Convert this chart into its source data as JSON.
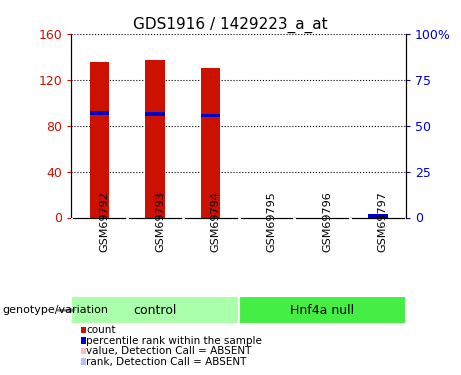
{
  "title": "GDS1916 / 1429223_a_at",
  "samples": [
    "GSM69792",
    "GSM69793",
    "GSM69794",
    "GSM69795",
    "GSM69796",
    "GSM69797"
  ],
  "bar_heights": [
    135,
    137,
    130,
    0,
    0,
    0
  ],
  "blue_marks_left_scale": [
    91,
    90,
    89,
    0,
    0,
    1.5
  ],
  "ylim_left": [
    0,
    160
  ],
  "ylim_right": [
    0,
    100
  ],
  "yticks_left": [
    0,
    40,
    80,
    120,
    160
  ],
  "yticks_right": [
    0,
    25,
    50,
    75,
    100
  ],
  "ytick_labels_left": [
    "0",
    "40",
    "80",
    "120",
    "160"
  ],
  "ytick_labels_right": [
    "0",
    "25",
    "50",
    "75",
    "100%"
  ],
  "bar_color": "#cc1100",
  "blue_color": "#0000cc",
  "absent_bar_color": "#ffbbbb",
  "absent_rank_color": "#bbbbff",
  "control_bg": "#aaffaa",
  "hnf4a_bg": "#44ee44",
  "sample_bg": "#cccccc",
  "bar_width": 0.35,
  "n_control": 3,
  "control_label": "control",
  "hnf4a_label": "Hnf4a null",
  "genotype_label": "genotype/variation",
  "legend_items": [
    {
      "label": "count",
      "color": "#cc1100"
    },
    {
      "label": "percentile rank within the sample",
      "color": "#0000cc"
    },
    {
      "label": "value, Detection Call = ABSENT",
      "color": "#ffbbbb"
    },
    {
      "label": "rank, Detection Call = ABSENT",
      "color": "#bbbbff"
    }
  ]
}
